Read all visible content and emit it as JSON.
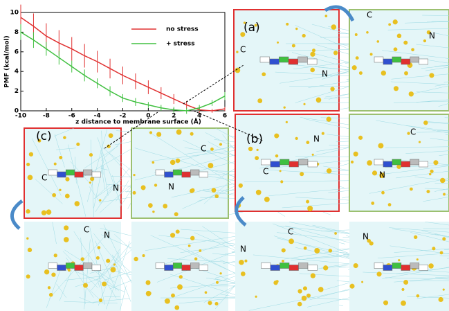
{
  "chart_data": {
    "type": "line",
    "ylabel": "PMF (kcal/mol)",
    "xlabel": "z distance to membrane surface (Å)",
    "x": [
      -10,
      -9,
      -8,
      -7,
      -6,
      -5,
      -4,
      -3,
      -2,
      -1,
      0,
      1,
      2,
      3,
      4,
      5,
      6
    ],
    "series": [
      {
        "name": "no stress",
        "color": "#e03030",
        "values": [
          9.5,
          8.6,
          7.6,
          6.9,
          6.3,
          5.6,
          5.0,
          4.3,
          3.6,
          3.0,
          2.4,
          1.8,
          1.2,
          0.6,
          0.1,
          0,
          0.2
        ],
        "errors": [
          1.3,
          1.3,
          1.3,
          1.3,
          1.2,
          1.2,
          1.1,
          1.0,
          0.9,
          0.8,
          0.7,
          0.6,
          0.5,
          0.4,
          0.3,
          0.2,
          0.2
        ]
      },
      {
        "name": "+ stress",
        "color": "#40c040",
        "values": [
          8.0,
          7.2,
          6.3,
          5.4,
          4.5,
          3.6,
          2.8,
          2.0,
          1.3,
          0.9,
          0.6,
          0.3,
          0.1,
          0,
          0.3,
          0.8,
          1.5
        ],
        "errors": [
          0.8,
          0.8,
          0.7,
          0.7,
          0.6,
          0.6,
          0.5,
          0.5,
          0.4,
          0.4,
          0.3,
          0.3,
          0.3,
          0.3,
          0.3,
          0.3,
          0.4
        ]
      }
    ],
    "xlim": [
      -10,
      6
    ],
    "xticks": [
      -10,
      -8,
      -6,
      -4,
      -2,
      0,
      2,
      4,
      6
    ],
    "ylim": [
      0,
      10
    ],
    "yticks": [
      0,
      2,
      4,
      6,
      8,
      10
    ]
  },
  "panel_labels": [
    "(a)",
    "(b)",
    "(c)"
  ],
  "terminus_labels": [
    "C",
    "N",
    "C",
    "N",
    "C",
    "N",
    "C",
    "N",
    "N",
    "C",
    "C",
    "N",
    "C",
    "N",
    "C",
    "N",
    "N"
  ]
}
